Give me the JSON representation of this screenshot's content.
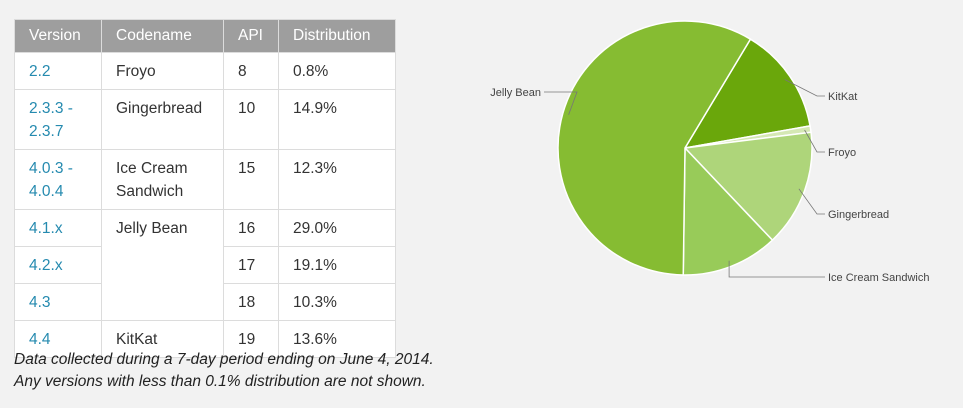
{
  "table": {
    "headers": {
      "version": "Version",
      "codename": "Codename",
      "api": "API",
      "distribution": "Distribution"
    },
    "rows": [
      {
        "version": "2.2",
        "codename": "Froyo",
        "api": "8",
        "distribution": "0.8%"
      },
      {
        "version": "2.3.3 - 2.3.7",
        "codename": "Gingerbread",
        "api": "10",
        "distribution": "14.9%"
      },
      {
        "version": "4.0.3 - 4.0.4",
        "codename": "Ice Cream Sandwich",
        "api": "15",
        "distribution": "12.3%"
      },
      {
        "version": "4.1.x",
        "codename": "Jelly Bean",
        "api": "16",
        "distribution": "29.0%"
      },
      {
        "version": "4.2.x",
        "codename": "",
        "api": "17",
        "distribution": "19.1%"
      },
      {
        "version": "4.3",
        "codename": "",
        "api": "18",
        "distribution": "10.3%"
      },
      {
        "version": "4.4",
        "codename": "KitKat",
        "api": "19",
        "distribution": "13.6%"
      }
    ]
  },
  "note": {
    "line1": "Data collected during a 7-day period ending on June 4, 2014.",
    "line2": "Any versions with less than 0.1% distribution are not shown."
  },
  "chart_data": {
    "type": "pie",
    "title": "",
    "slices": [
      {
        "label": "KitKat",
        "value": 13.6,
        "color": "#6aa70b"
      },
      {
        "label": "Froyo",
        "value": 0.8,
        "color": "#d5e8b4"
      },
      {
        "label": "Gingerbread",
        "value": 14.9,
        "color": "#aed57a"
      },
      {
        "label": "Ice Cream Sandwich",
        "value": 12.3,
        "color": "#98cb59"
      },
      {
        "label": "Jelly Bean",
        "value": 58.4,
        "color": "#86bc32"
      }
    ]
  }
}
